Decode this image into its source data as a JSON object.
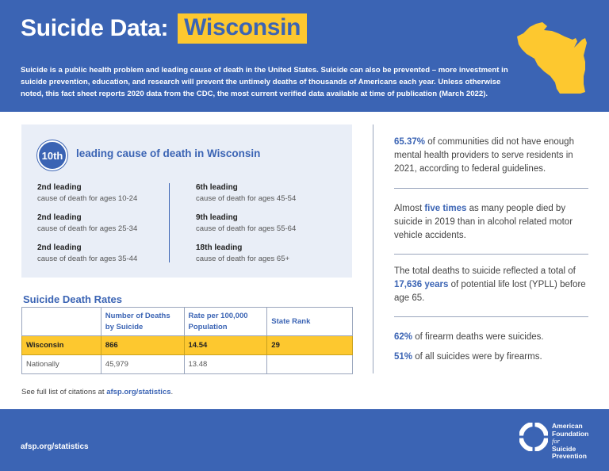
{
  "header": {
    "title": "Suicide Data:",
    "state": "Wisconsin",
    "intro": "Suicide is a public health problem and leading cause of death in the United States. Suicide can also be prevented – more investment in suicide prevention, education, and research will prevent the untimely deaths of thousands of Americans each year. Unless otherwise noted, this fact sheet reports 2020 data from the CDC, the most current verified data available at time of publication (March 2022).",
    "state_shape_icon": "wisconsin-state-silhouette",
    "colors": {
      "primary": "#3b64b4",
      "accent": "#fdc82f"
    }
  },
  "rank": {
    "badge": "10th",
    "heading": "leading cause of death in Wisconsin",
    "left": [
      {
        "lead": "2nd leading",
        "sub": "cause of death for ages 10-24"
      },
      {
        "lead": "2nd leading",
        "sub": "cause of death for ages 25-34"
      },
      {
        "lead": "2nd leading",
        "sub": "cause of death for ages 35-44"
      }
    ],
    "right": [
      {
        "lead": "6th leading",
        "sub": "cause of death for ages 45-54"
      },
      {
        "lead": "9th leading",
        "sub": "cause of death for ages 55-64"
      },
      {
        "lead": "18th leading",
        "sub": "cause of death for ages 65+"
      }
    ]
  },
  "rates": {
    "title": "Suicide Death Rates",
    "columns": [
      "",
      "Number of Deaths by Suicide",
      "Rate per 100,000 Population",
      "State Rank"
    ],
    "rows": [
      {
        "label": "Wisconsin",
        "deaths": "866",
        "rate": "14.54",
        "rank": "29"
      },
      {
        "label": "Nationally",
        "deaths": "45,979",
        "rate": "13.48",
        "rank": ""
      }
    ]
  },
  "citations": {
    "text": "See full list of citations at ",
    "link": "afsp.org/statistics",
    "end": "."
  },
  "facts": [
    {
      "highlight": "65.37%",
      "text": " of communities did not have enough mental health providers to serve residents in 2021, according to federal guidelines."
    },
    {
      "pre": "Almost ",
      "highlight": "five times",
      "text": " as many people died by suicide in 2019 than in alcohol related motor vehicle accidents."
    },
    {
      "pre": "The total deaths to suicide reflected a total of ",
      "highlight": "17,636 years",
      "text": " of potential life lost (YPLL) before age 65."
    },
    {
      "highlight": "62%",
      "text": " of firearm deaths were suicides."
    },
    {
      "highlight": "51%",
      "text": " of all suicides were by firearms."
    }
  ],
  "footer": {
    "url": "afsp.org/statistics",
    "logo_icon": "lifesaver-ring-icon",
    "logo_lines": [
      "American",
      "Foundation",
      "for",
      "Suicide",
      "Prevention"
    ]
  }
}
